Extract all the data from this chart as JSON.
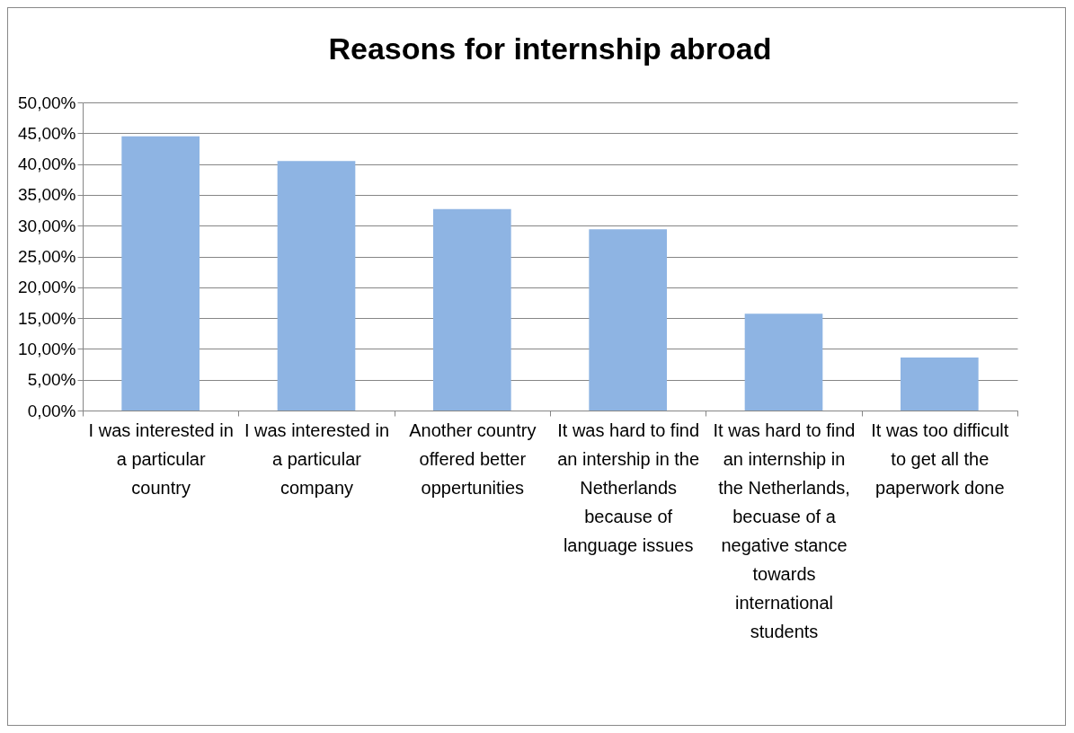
{
  "chart_data": {
    "type": "bar",
    "title": "Reasons for internship abroad",
    "categories": [
      "I was interested in a particular country",
      "I was interested in a particular company",
      "Another country offered better oppertunities",
      "It was hard to find an intership in the Netherlands because of language issues",
      "It was hard to find an internship in the Netherlands, becuase of a negative stance towards international students",
      "It was too difficult to get all the paperwork done"
    ],
    "values": [
      44.5,
      40.5,
      32.7,
      29.4,
      15.7,
      8.6
    ],
    "color": "#8eb4e3",
    "ylim": [
      0,
      50
    ],
    "yticks": [
      {
        "value": 0,
        "label": "0,00%"
      },
      {
        "value": 5,
        "label": "5,00%"
      },
      {
        "value": 10,
        "label": "10,00%"
      },
      {
        "value": 15,
        "label": "15,00%"
      },
      {
        "value": 20,
        "label": "20,00%"
      },
      {
        "value": 25,
        "label": "25,00%"
      },
      {
        "value": 30,
        "label": "30,00%"
      },
      {
        "value": 35,
        "label": "35,00%"
      },
      {
        "value": 40,
        "label": "40,00%"
      },
      {
        "value": 45,
        "label": "45,00%"
      },
      {
        "value": 50,
        "label": "50,00%"
      }
    ],
    "grid": "y"
  }
}
